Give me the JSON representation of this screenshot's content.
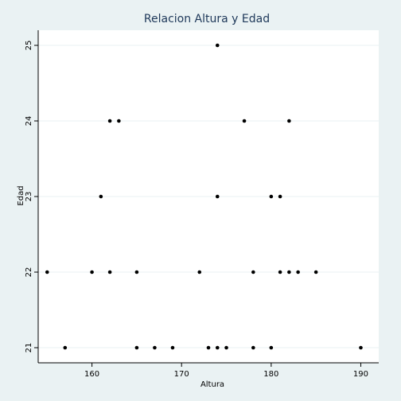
{
  "chart_data": {
    "type": "scatter",
    "title": "Relacion Altura y Edad",
    "xlabel": "Altura",
    "ylabel": "Edad",
    "xlim": [
      154,
      192
    ],
    "ylim": [
      20.8,
      25.2
    ],
    "xticks": [
      160,
      170,
      180,
      190
    ],
    "yticks": [
      21,
      22,
      23,
      24,
      25
    ],
    "grid": true,
    "legend": "none",
    "colors": {
      "background": "#eaf2f3",
      "plot_area": "#ffffff",
      "marker": "#000000",
      "gridline": "#eaf2f3",
      "title": "#1e3859"
    },
    "points": [
      {
        "x": 174,
        "y": 25
      },
      {
        "x": 162,
        "y": 24
      },
      {
        "x": 163,
        "y": 24
      },
      {
        "x": 177,
        "y": 24
      },
      {
        "x": 182,
        "y": 24
      },
      {
        "x": 161,
        "y": 23
      },
      {
        "x": 174,
        "y": 23
      },
      {
        "x": 180,
        "y": 23
      },
      {
        "x": 181,
        "y": 23
      },
      {
        "x": 155,
        "y": 22
      },
      {
        "x": 160,
        "y": 22
      },
      {
        "x": 162,
        "y": 22
      },
      {
        "x": 165,
        "y": 22
      },
      {
        "x": 172,
        "y": 22
      },
      {
        "x": 178,
        "y": 22
      },
      {
        "x": 181,
        "y": 22
      },
      {
        "x": 182,
        "y": 22
      },
      {
        "x": 183,
        "y": 22
      },
      {
        "x": 185,
        "y": 22
      },
      {
        "x": 157,
        "y": 21
      },
      {
        "x": 165,
        "y": 21
      },
      {
        "x": 167,
        "y": 21
      },
      {
        "x": 169,
        "y": 21
      },
      {
        "x": 173,
        "y": 21
      },
      {
        "x": 174,
        "y": 21
      },
      {
        "x": 175,
        "y": 21
      },
      {
        "x": 178,
        "y": 21
      },
      {
        "x": 180,
        "y": 21
      },
      {
        "x": 190,
        "y": 21
      }
    ]
  }
}
